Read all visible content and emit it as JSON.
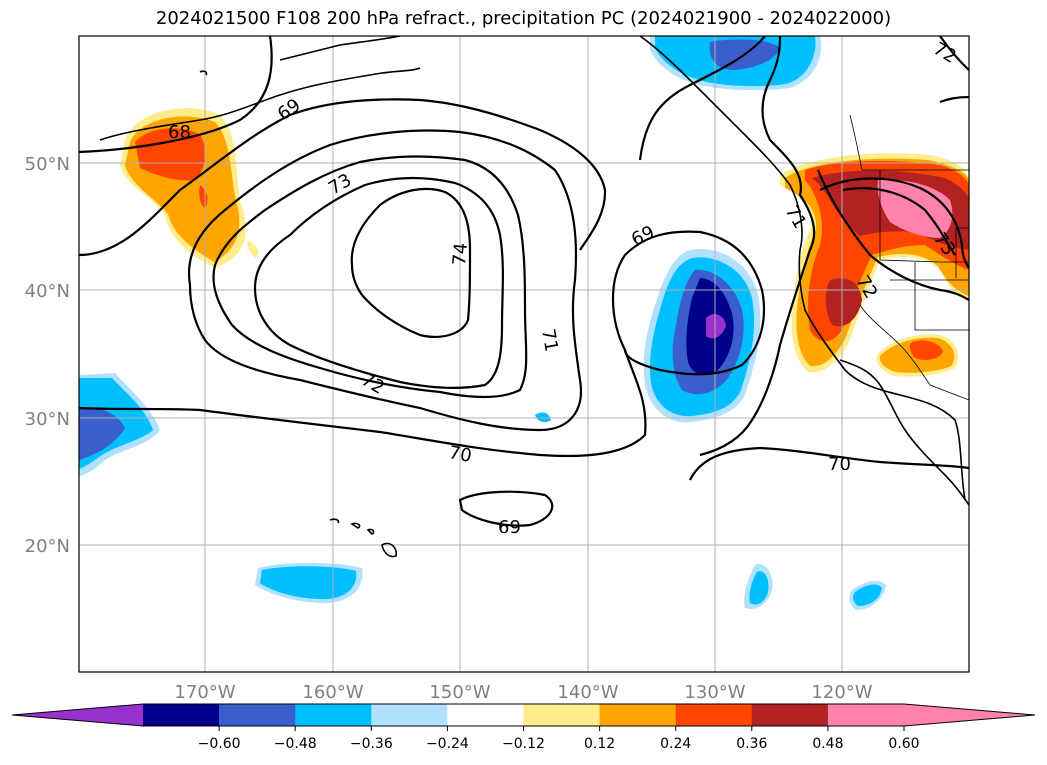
{
  "title": "2024021500 F108 200 hPa refract., precipitation PC (2024021900 - 2024022000)",
  "latitude_labels": [
    "50°N",
    "40°N",
    "30°N",
    "20°N"
  ],
  "longitude_labels": [
    "170°W",
    "160°W",
    "150°W",
    "140°W",
    "130°W",
    "120°W"
  ],
  "contour_labels": [
    "68",
    "69",
    "73",
    "74",
    "71",
    "72",
    "70",
    "69",
    "70",
    "69",
    "71",
    "72",
    "73",
    "72"
  ],
  "colorbar": {
    "tick_labels": [
      "−0.60",
      "−0.48",
      "−0.36",
      "−0.24",
      "−0.12",
      "0.12",
      "0.24",
      "0.36",
      "0.48",
      "0.60"
    ],
    "colors": [
      "#9932cc",
      "#00008b",
      "#3a5fcd",
      "#00bfff",
      "#b0e2ff",
      "#ffffff",
      "#ffec8b",
      "#ffa500",
      "#ff4500",
      "#b22222",
      "#ff82ab",
      "#ff82ab"
    ]
  }
}
